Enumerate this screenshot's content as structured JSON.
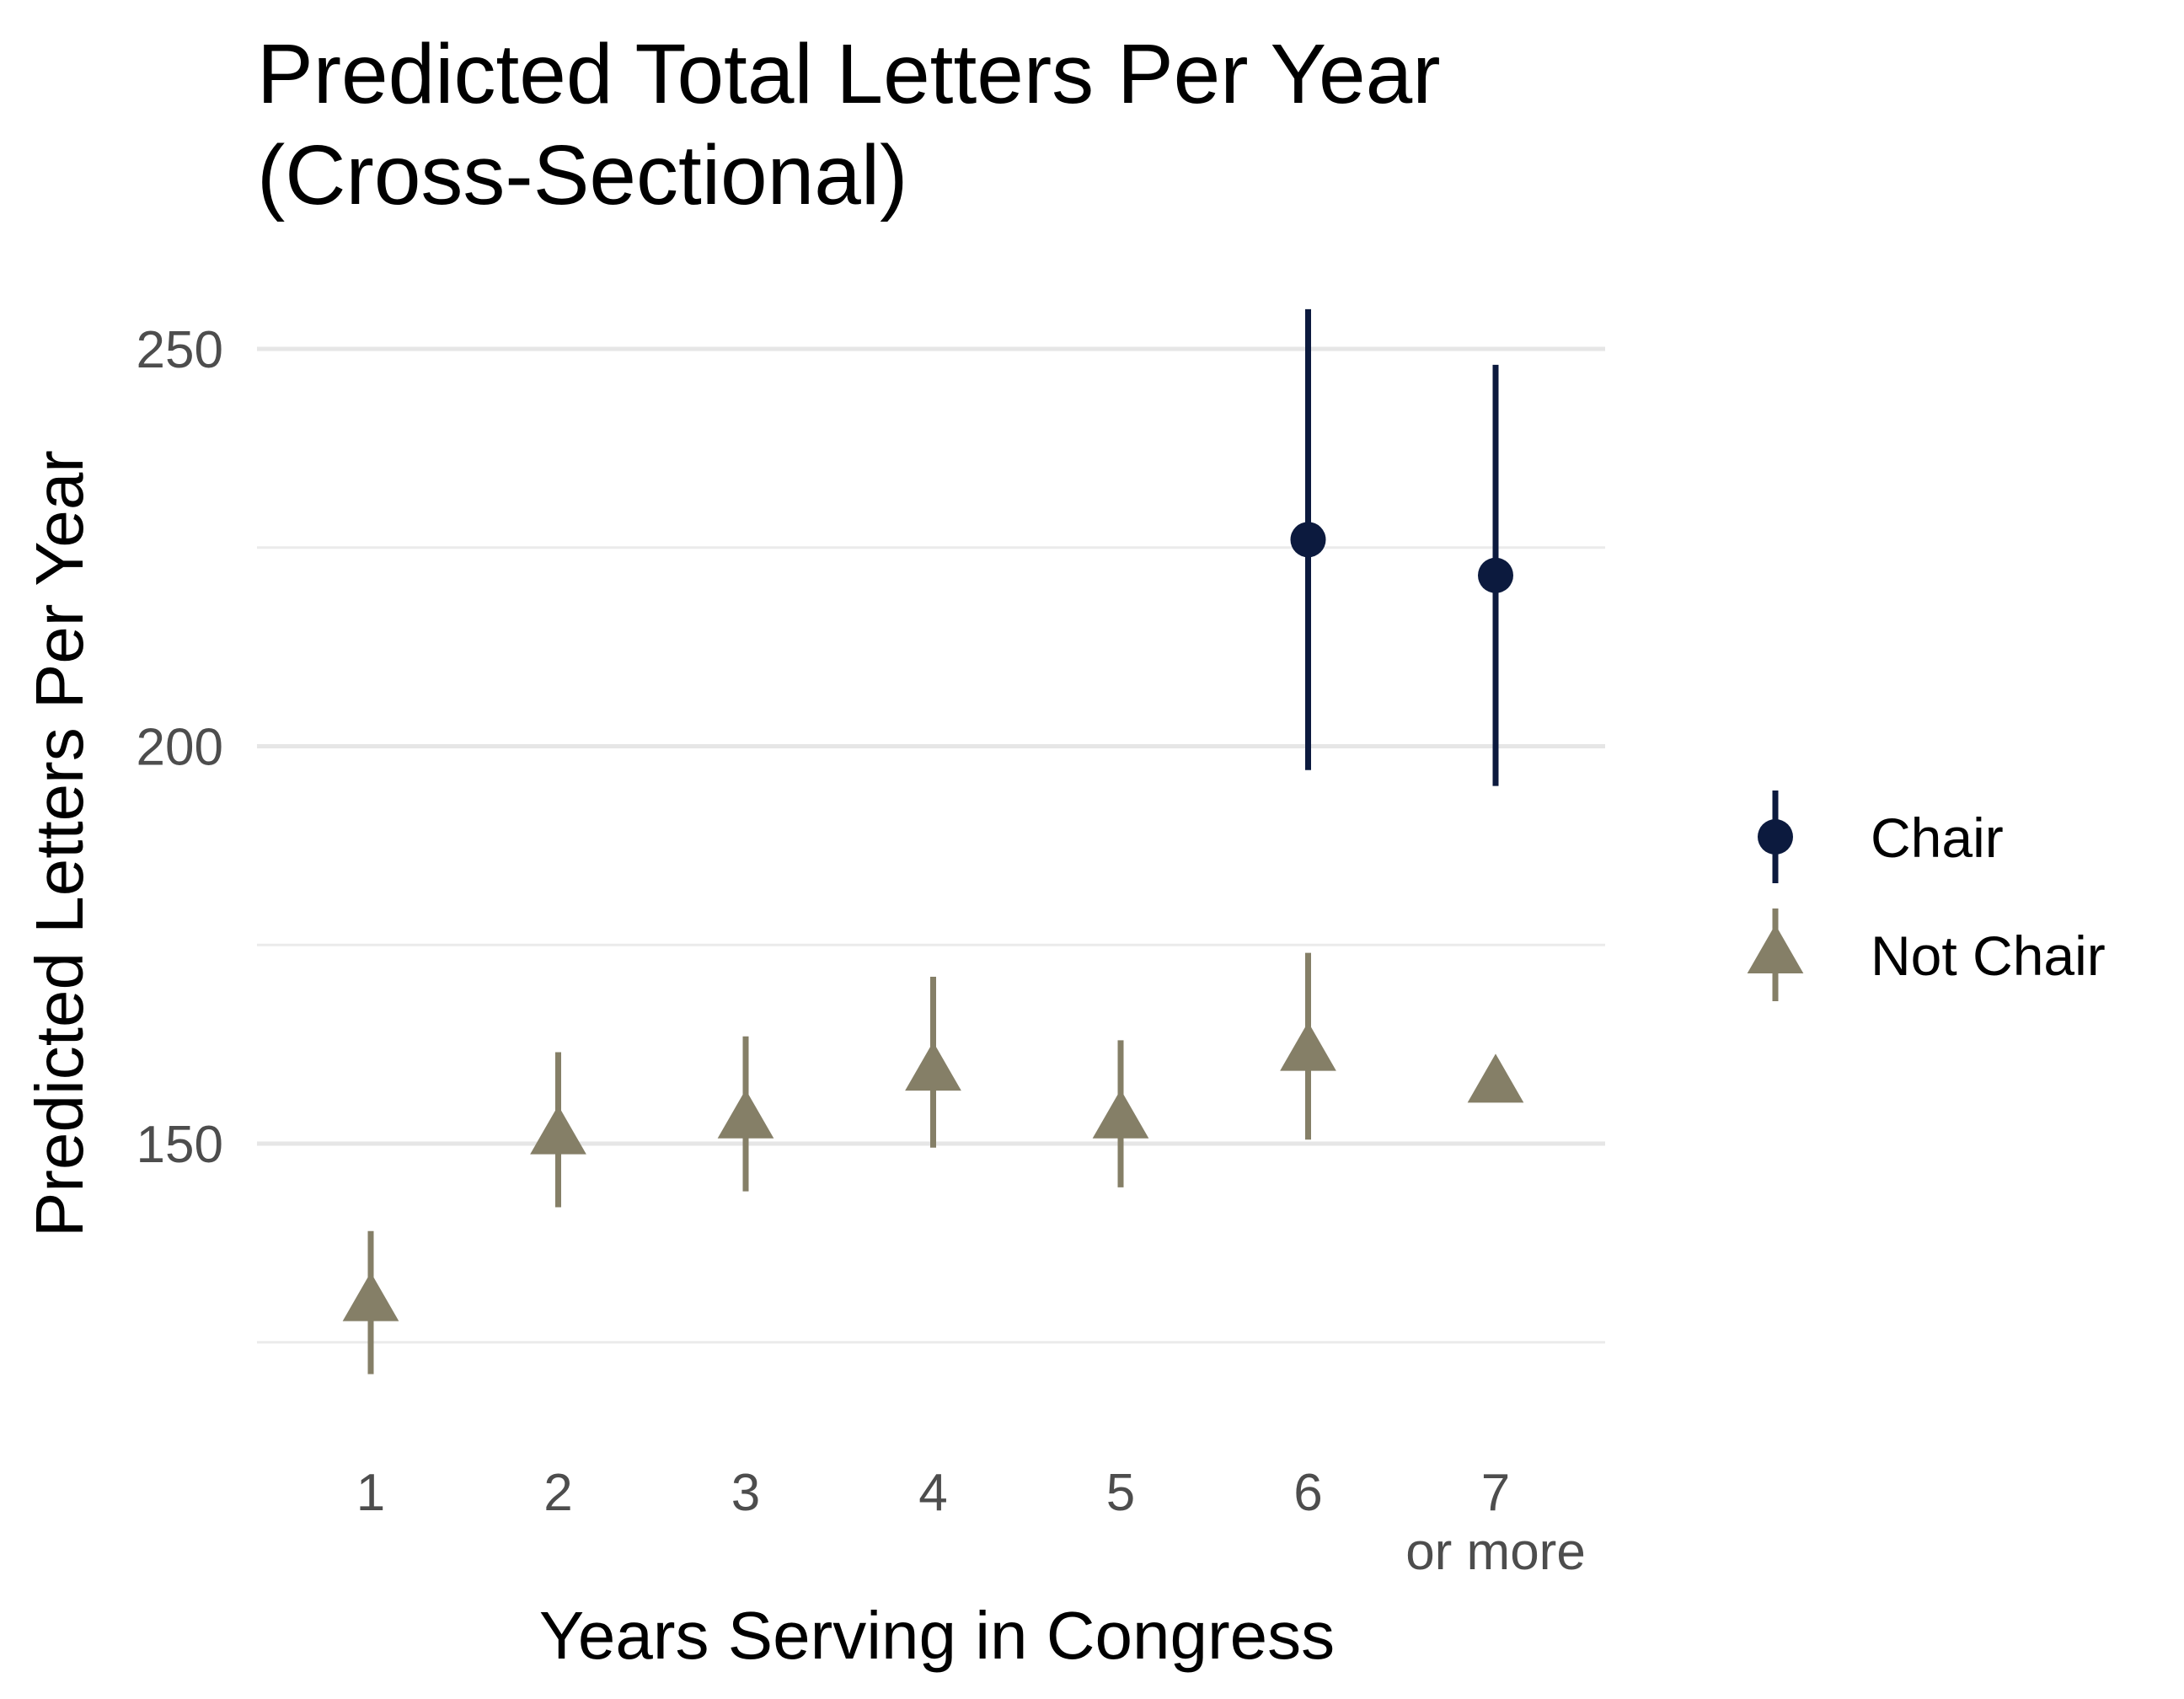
{
  "chart_data": {
    "type": "scatter",
    "title_lines": [
      "Predicted Total Letters Per Year",
      "(Cross-Sectional)"
    ],
    "xlabel": "Years Serving in Congress",
    "ylabel": "Predicted Letters Per Year",
    "categories": [
      "1",
      "2",
      "3",
      "4",
      "5",
      "6",
      "7"
    ],
    "category_sublabels": [
      "",
      "",
      "",
      "",
      "",
      "",
      "or more"
    ],
    "y_ticks": [
      150,
      200,
      250
    ],
    "ylim": [
      117,
      262
    ],
    "grid": true,
    "legend_position": "right",
    "series": [
      {
        "name": "Chair",
        "marker": "circle",
        "color": "#0c1a3e",
        "points": [
          {
            "x": "6",
            "y": 226,
            "lower": 197,
            "upper": 255
          },
          {
            "x": "7",
            "y": 221.5,
            "lower": 195,
            "upper": 248
          }
        ]
      },
      {
        "name": "Not Chair",
        "marker": "triangle",
        "color": "#857f67",
        "points": [
          {
            "x": "1",
            "y": 130,
            "lower": 121,
            "upper": 139
          },
          {
            "x": "2",
            "y": 151,
            "lower": 142,
            "upper": 161.5
          },
          {
            "x": "3",
            "y": 153,
            "lower": 144,
            "upper": 163.5
          },
          {
            "x": "4",
            "y": 159,
            "lower": 149.5,
            "upper": 171
          },
          {
            "x": "5",
            "y": 153,
            "lower": 144.5,
            "upper": 163
          },
          {
            "x": "6",
            "y": 161.5,
            "lower": 150.5,
            "upper": 174
          },
          {
            "x": "7",
            "y": 157.5
          }
        ]
      }
    ]
  }
}
